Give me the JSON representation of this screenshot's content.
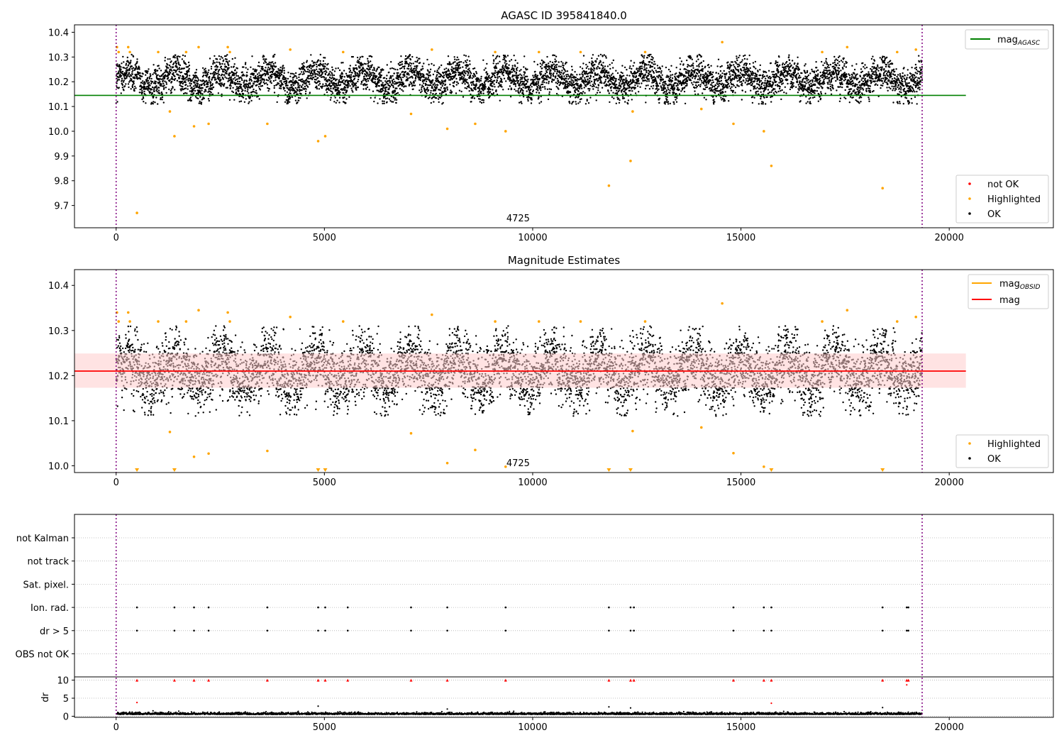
{
  "colors": {
    "ok": "#000000",
    "highlighted": "#ffa500",
    "not_ok": "#ff0000",
    "agasc_line": "#008000",
    "mean_line": "#ff0000",
    "band_fill": "#ffcccc",
    "obs_boundary": "#800080",
    "grid": "#b0b0b0"
  },
  "chart_data": [
    {
      "type": "scatter",
      "title": "AGASC ID 395841840.0",
      "xlim": [
        -1000,
        22500
      ],
      "ylim": [
        9.61,
        10.43
      ],
      "xticks": [
        0,
        5000,
        10000,
        15000,
        20000
      ],
      "yticks": [
        9.7,
        9.8,
        9.9,
        10.0,
        10.1,
        10.2,
        10.3,
        10.4
      ],
      "ytick_labels": [
        "9.7",
        "9.8",
        "9.9",
        "10.0",
        "10.1",
        "10.2",
        "10.3",
        "10.4"
      ],
      "obs_boundaries": [
        0,
        19350
      ],
      "obs_label": "4725",
      "obs_label_x": 9650,
      "mag_agasc": 10.145,
      "mag_agasc_x": [
        -1000,
        20400
      ],
      "series": [
        {
          "name": "not OK",
          "points": []
        },
        {
          "name": "Highlighted",
          "points": [
            [
              20,
              10.34
            ],
            [
              60,
              10.32
            ],
            [
              290,
              10.34
            ],
            [
              330,
              10.32
            ],
            [
              500,
              9.67
            ],
            [
              1010,
              10.32
            ],
            [
              1290,
              10.08
            ],
            [
              1400,
              9.98
            ],
            [
              1680,
              10.32
            ],
            [
              1870,
              10.02
            ],
            [
              1980,
              10.34
            ],
            [
              2220,
              10.03
            ],
            [
              2680,
              10.34
            ],
            [
              2730,
              10.32
            ],
            [
              3630,
              10.03
            ],
            [
              4180,
              10.33
            ],
            [
              4850,
              9.96
            ],
            [
              5020,
              9.98
            ],
            [
              5450,
              10.32
            ],
            [
              7080,
              10.07
            ],
            [
              7580,
              10.33
            ],
            [
              7950,
              10.01
            ],
            [
              8620,
              10.03
            ],
            [
              9350,
              10.0
            ],
            [
              9100,
              10.32
            ],
            [
              10150,
              10.32
            ],
            [
              11150,
              10.32
            ],
            [
              11830,
              9.78
            ],
            [
              12350,
              9.88
            ],
            [
              12400,
              10.08
            ],
            [
              12700,
              10.32
            ],
            [
              14050,
              10.09
            ],
            [
              14550,
              10.36
            ],
            [
              14820,
              10.03
            ],
            [
              15550,
              10.0
            ],
            [
              15730,
              9.86
            ],
            [
              16950,
              10.32
            ],
            [
              17550,
              10.34
            ],
            [
              18400,
              9.77
            ],
            [
              18750,
              10.32
            ],
            [
              19200,
              10.33
            ]
          ]
        },
        {
          "name": "OK",
          "x_range": [
            0,
            19350
          ],
          "band_center": 10.21,
          "band_halfwidth": 0.1
        }
      ],
      "legend_top": [
        "mag_AGASC"
      ],
      "legend_bottom": [
        "not OK",
        "Highlighted",
        "OK"
      ]
    },
    {
      "type": "scatter",
      "title": "Magnitude Estimates",
      "xlim": [
        -1000,
        22500
      ],
      "ylim": [
        9.985,
        10.435
      ],
      "xticks": [
        0,
        5000,
        10000,
        15000,
        20000
      ],
      "yticks": [
        10.0,
        10.1,
        10.2,
        10.3,
        10.4
      ],
      "ytick_labels": [
        "10.0",
        "10.1",
        "10.2",
        "10.3",
        "10.4"
      ],
      "obs_boundaries": [
        0,
        19350
      ],
      "obs_label": "4725",
      "obs_label_x": 9650,
      "mag": 10.21,
      "mag_band": [
        10.173,
        10.249
      ],
      "mag_band_x": [
        -1000,
        20400
      ],
      "series": [
        {
          "name": "Highlighted",
          "points": [
            [
              20,
              10.34
            ],
            [
              60,
              10.32
            ],
            [
              290,
              10.34
            ],
            [
              330,
              10.32
            ],
            [
              1010,
              10.32
            ],
            [
              1290,
              10.075
            ],
            [
              1680,
              10.32
            ],
            [
              1870,
              10.02
            ],
            [
              1980,
              10.345
            ],
            [
              2220,
              10.027
            ],
            [
              2680,
              10.34
            ],
            [
              2730,
              10.32
            ],
            [
              3630,
              10.033
            ],
            [
              4180,
              10.33
            ],
            [
              5450,
              10.32
            ],
            [
              7080,
              10.072
            ],
            [
              7580,
              10.335
            ],
            [
              7950,
              10.006
            ],
            [
              8620,
              10.035
            ],
            [
              9350,
              9.998
            ],
            [
              9100,
              10.32
            ],
            [
              10150,
              10.32
            ],
            [
              11150,
              10.32
            ],
            [
              12400,
              10.077
            ],
            [
              12700,
              10.32
            ],
            [
              14050,
              10.085
            ],
            [
              14550,
              10.36
            ],
            [
              14820,
              10.028
            ],
            [
              15550,
              9.998
            ],
            [
              16950,
              10.32
            ],
            [
              17550,
              10.345
            ],
            [
              18750,
              10.32
            ],
            [
              19200,
              10.33
            ]
          ]
        },
        {
          "name": "Highlighted (off-scale)",
          "x": [
            500,
            1400,
            4850,
            5020,
            11830,
            12350,
            15730,
            18400
          ]
        },
        {
          "name": "OK",
          "x_range": [
            0,
            19350
          ],
          "band_center": 10.21,
          "band_halfwidth": 0.1
        }
      ],
      "legend_top": [
        "mag_OBSID",
        "mag"
      ],
      "legend_bottom": [
        "Highlighted",
        "OK"
      ]
    },
    {
      "type": "scatter",
      "title": "",
      "xlim": [
        -1000,
        22500
      ],
      "obs_boundaries": [
        0,
        19350
      ],
      "flag_rows": [
        "not Kalman",
        "not track",
        "Sat. pixel.",
        "Ion. rad.",
        "dr > 5",
        "OBS not OK"
      ],
      "flag_points": {
        "Ion. rad.": [
          500,
          1400,
          1870,
          2220,
          3630,
          4850,
          5020,
          5560,
          7080,
          7950,
          9350,
          11830,
          12350,
          12430,
          14820,
          15550,
          15730,
          18400,
          18980,
          19020
        ],
        "dr > 5": [
          500,
          1400,
          1870,
          2220,
          3630,
          4850,
          5020,
          5560,
          7080,
          7950,
          9350,
          11830,
          12350,
          12430,
          14820,
          15550,
          15730,
          18400,
          18980,
          19020
        ]
      },
      "dr": {
        "ylabel": "dr",
        "ylim": [
          -0.3,
          10.9
        ],
        "yticks": [
          0,
          5,
          10
        ],
        "ytick_labels": [
          "0",
          "5",
          "10"
        ],
        "capped": [
          500,
          1400,
          1870,
          2220,
          3630,
          4850,
          5020,
          5560,
          7080,
          7950,
          9350,
          11830,
          12350,
          12430,
          14820,
          15550,
          15730,
          18400,
          18980,
          19020
        ],
        "outliers": [
          [
            500,
            3.8
          ],
          [
            4850,
            2.8
          ],
          [
            7950,
            2.0
          ],
          [
            11830,
            2.6
          ],
          [
            12350,
            2.3
          ],
          [
            15730,
            3.6
          ],
          [
            18400,
            2.4
          ],
          [
            18980,
            8.7
          ]
        ],
        "x_range": [
          0,
          19350
        ]
      },
      "xticks": [
        0,
        5000,
        10000,
        15000,
        20000
      ]
    }
  ]
}
